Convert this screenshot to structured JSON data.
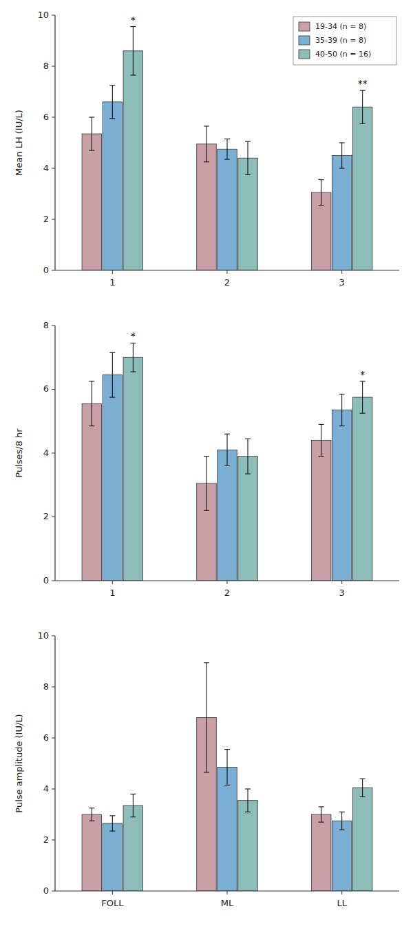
{
  "chart_data": [
    {
      "type": "bar",
      "ylabel": "Mean LH (IU/L)",
      "categories": [
        "1",
        "2",
        "3"
      ],
      "series": [
        {
          "name": "19-34 (n = 8)",
          "color": "#C9A0A8",
          "values": [
            5.35,
            4.95,
            3.05
          ],
          "errors": [
            0.65,
            0.7,
            0.5
          ]
        },
        {
          "name": "35-39 (n = 8)",
          "color": "#7BAFD4",
          "values": [
            6.6,
            4.75,
            4.5
          ],
          "errors": [
            0.65,
            0.4,
            0.5
          ]
        },
        {
          "name": "40-50 (n = 16)",
          "color": "#8DBDB8",
          "values": [
            8.6,
            4.4,
            6.4
          ],
          "errors": [
            0.95,
            0.65,
            0.65
          ]
        }
      ],
      "annotations": [
        {
          "text": "*",
          "category": "1",
          "series": 2
        },
        {
          "text": "**",
          "category": "3",
          "series": 2
        }
      ],
      "ylim": [
        0,
        10
      ],
      "yticks": [
        0,
        2,
        4,
        6,
        8,
        10
      ],
      "grid": false,
      "legend": "upper right"
    },
    {
      "type": "bar",
      "ylabel": "Pulses/8 hr",
      "categories": [
        "1",
        "2",
        "3"
      ],
      "series": [
        {
          "color": "#C9A0A8",
          "values": [
            5.55,
            3.05,
            4.4
          ],
          "errors": [
            0.7,
            0.85,
            0.5
          ]
        },
        {
          "color": "#7BAFD4",
          "values": [
            6.45,
            4.1,
            5.35
          ],
          "errors": [
            0.7,
            0.5,
            0.5
          ]
        },
        {
          "color": "#8DBDB8",
          "values": [
            7.0,
            3.9,
            5.75
          ],
          "errors": [
            0.45,
            0.55,
            0.5
          ]
        }
      ],
      "annotations": [
        {
          "text": "*",
          "category": "1",
          "series": 2
        },
        {
          "text": "*",
          "category": "3",
          "series": 2
        }
      ],
      "ylim": [
        0,
        8
      ],
      "yticks": [
        0,
        2,
        4,
        6,
        8
      ],
      "grid": false
    },
    {
      "type": "bar",
      "ylabel": "Pulse amplitude (IU/L)",
      "categories": [
        "FOLL",
        "ML",
        "LL"
      ],
      "series": [
        {
          "color": "#C9A0A8",
          "values": [
            3.0,
            6.8,
            3.0
          ],
          "errors": [
            0.25,
            2.15,
            0.3
          ]
        },
        {
          "color": "#7BAFD4",
          "values": [
            2.65,
            4.85,
            2.75
          ],
          "errors": [
            0.3,
            0.7,
            0.35
          ]
        },
        {
          "color": "#8DBDB8",
          "values": [
            3.35,
            3.55,
            4.05
          ],
          "errors": [
            0.45,
            0.45,
            0.35
          ]
        }
      ],
      "ylim": [
        0,
        10
      ],
      "yticks": [
        0,
        2,
        4,
        6,
        8,
        10
      ],
      "grid": false
    }
  ]
}
